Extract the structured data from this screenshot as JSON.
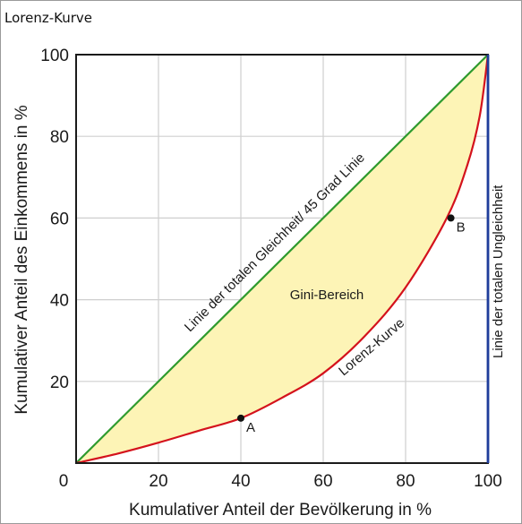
{
  "caption": "Lorenz-Kurve",
  "colors": {
    "equality": "#2e9a2e",
    "lorenz": "#d4121c",
    "gini_fill": "#fdf4b6",
    "perfect_inequality": "#1f3d9b",
    "grid": "#cfcfcf",
    "frame": "#1a1a1a"
  },
  "chart_data": {
    "type": "line",
    "title": "Lorenz-Kurve",
    "xlabel": "Kumulativer Anteil der Bevölkerung in %",
    "ylabel": "Kumulativer Anteil des Einkommens in %",
    "xlim": [
      0,
      100
    ],
    "ylim": [
      0,
      100
    ],
    "x_ticks": [
      "0",
      "20",
      "40",
      "60",
      "80",
      "100"
    ],
    "y_ticks": [
      "20",
      "40",
      "60",
      "80",
      "100"
    ],
    "grid": true,
    "series": [
      {
        "name": "Linie der totalen Gleichheit/ 45 Grad Linie",
        "x": [
          0,
          100
        ],
        "y": [
          0,
          100
        ]
      },
      {
        "name": "Lorenz-Kurve",
        "x": [
          0,
          10,
          20,
          30,
          40,
          50,
          60,
          70,
          80,
          90,
          95,
          98,
          100
        ],
        "y": [
          0,
          2.3,
          5,
          8,
          11,
          16,
          22,
          31,
          43,
          60,
          73,
          85,
          100
        ]
      },
      {
        "name": "Linie der totalen Ungleichheit",
        "x": [
          100,
          100
        ],
        "y": [
          0,
          100
        ]
      }
    ],
    "points": [
      {
        "label": "A",
        "x": 40,
        "y": 11
      },
      {
        "label": "B",
        "x": 91,
        "y": 60
      }
    ],
    "annotations": {
      "equality_label": "Linie der totalen Gleichheit/ 45 Grad Linie",
      "lorenz_label": "Lorenz-Kurve",
      "gini_label": "Gini-Bereich",
      "inequality_label": "Linie der totalen Ungleichheit"
    }
  }
}
